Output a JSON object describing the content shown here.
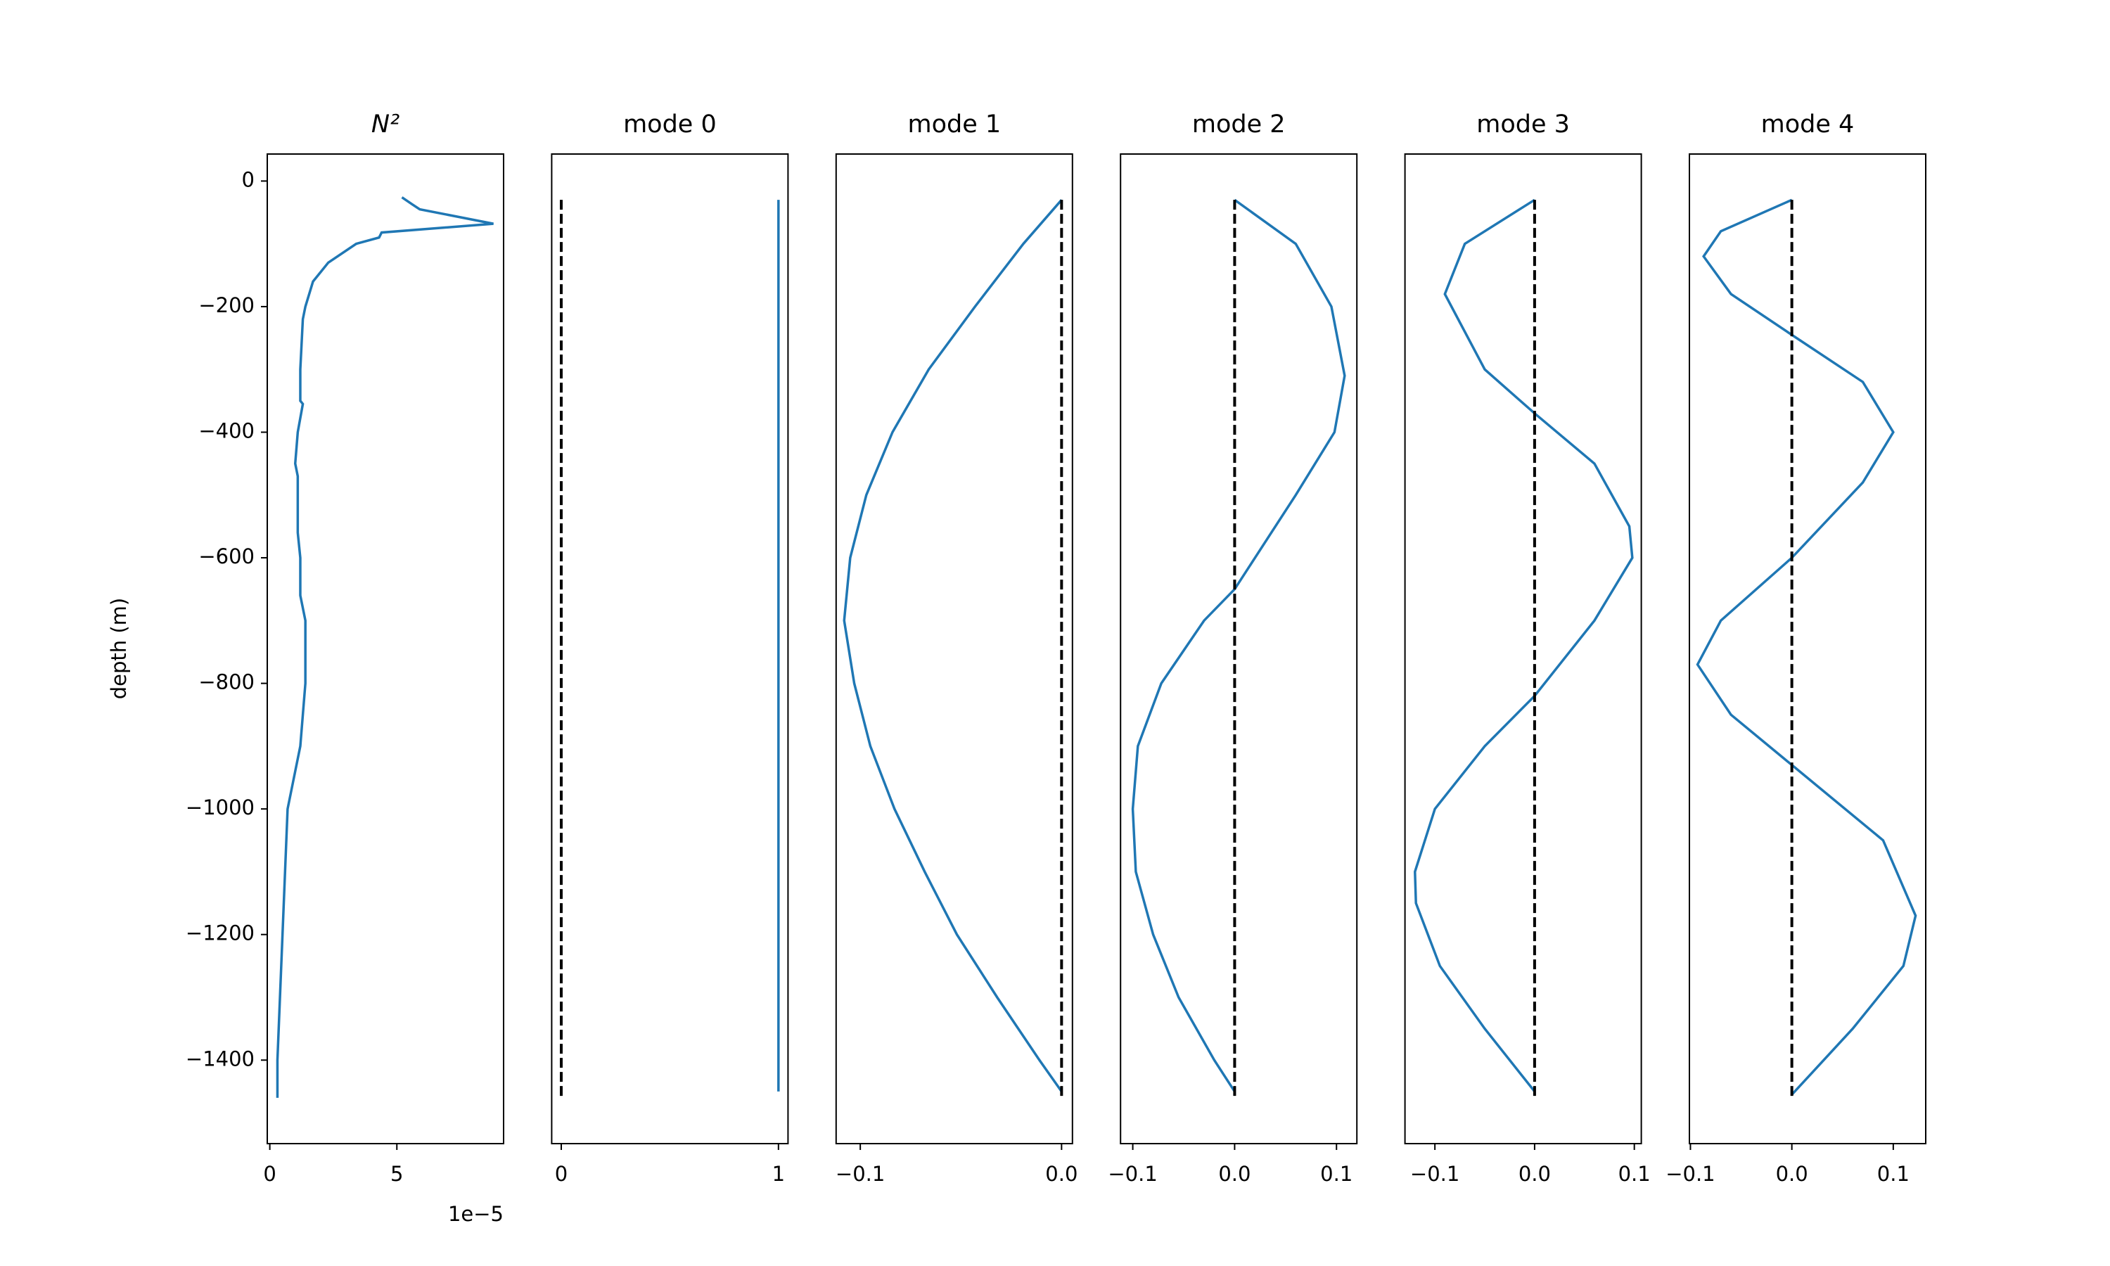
{
  "chart_data": [
    {
      "type": "line",
      "title": "N²",
      "ylabel": "depth (m)",
      "x_offset_label": "1e−5",
      "xlim": [
        -0.1,
        9.2
      ],
      "xticks": [
        0,
        5
      ],
      "ylim": [
        -1533,
        43
      ],
      "yticks": [
        0,
        {
          "value": -200,
          "label": "−200"
        },
        {
          "value": -400,
          "label": "−400"
        },
        {
          "value": -600,
          "label": "−600"
        },
        {
          "value": -800,
          "label": "−800"
        },
        {
          "value": -1000,
          "label": "−1000"
        },
        {
          "value": -1200,
          "label": "−1200"
        },
        {
          "value": -1400,
          "label": "−1400"
        }
      ],
      "series": [
        {
          "color": "#1f77b4",
          "values": [
            5.2,
            5.6,
            5.9,
            8.8,
            4.4,
            4.3,
            3.4,
            2.3,
            1.7,
            1.4,
            1.3,
            1.2,
            1.2,
            1.3,
            1.1,
            1.0,
            1.1,
            1.1,
            1.1,
            1.2,
            1.2,
            1.4,
            1.4,
            1.4,
            1.2,
            0.9,
            0.7,
            0.6,
            0.5,
            0.4,
            0.3,
            0.3
          ],
          "y": [
            -26,
            -37,
            -45,
            -68,
            -82,
            -90,
            -100,
            -130,
            -160,
            -200,
            -220,
            -300,
            -350,
            -355,
            -400,
            -450,
            -470,
            -500,
            -560,
            -600,
            -660,
            -700,
            -760,
            -800,
            -900,
            -960,
            -1000,
            -1100,
            -1200,
            -1300,
            -1400,
            -1460
          ]
        }
      ]
    },
    {
      "type": "line",
      "title": "mode 0",
      "xlim": [
        -0.044,
        1.044
      ],
      "xticks": [
        0,
        1
      ],
      "ylim": [
        -1533,
        43
      ],
      "series": [
        {
          "color": "#000000",
          "dashed": true,
          "values": [
            0,
            0
          ],
          "y": [
            -30,
            -1460
          ]
        },
        {
          "color": "#1f77b4",
          "values": [
            1,
            1
          ],
          "y": [
            -30,
            -1450
          ]
        }
      ]
    },
    {
      "type": "line",
      "title": "mode 1",
      "xlim": [
        -0.112,
        0.0054
      ],
      "xticks": [
        {
          "value": -0.1,
          "label": "−0.1"
        },
        {
          "value": 0,
          "label": "0.0"
        }
      ],
      "ylim": [
        -1533,
        43
      ],
      "series": [
        {
          "color": "#1f77b4",
          "values": [
            0,
            -0.019,
            -0.043,
            -0.066,
            -0.084,
            -0.097,
            -0.105,
            -0.108,
            -0.103,
            -0.095,
            -0.083,
            -0.068,
            -0.052,
            -0.032,
            -0.011,
            0
          ],
          "y": [
            -30,
            -100,
            -200,
            -300,
            -400,
            -500,
            -600,
            -700,
            -800,
            -900,
            -1000,
            -1100,
            -1200,
            -1300,
            -1400,
            -1450
          ]
        },
        {
          "color": "#000000",
          "dashed": true,
          "values": [
            0,
            0
          ],
          "y": [
            -30,
            -1460
          ]
        }
      ]
    },
    {
      "type": "line",
      "title": "mode 2",
      "xlim": [
        -0.112,
        0.12
      ],
      "xticks": [
        {
          "value": -0.1,
          "label": "−0.1"
        },
        {
          "value": 0,
          "label": "0.0"
        },
        0.1
      ],
      "ylim": [
        -1533,
        43
      ],
      "series": [
        {
          "color": "#1f77b4",
          "values": [
            0,
            0.06,
            0.095,
            0.108,
            0.098,
            0.06,
            0.02,
            0,
            -0.03,
            -0.072,
            -0.095,
            -0.1,
            -0.097,
            -0.08,
            -0.055,
            -0.02,
            0
          ],
          "y": [
            -30,
            -100,
            -200,
            -310,
            -400,
            -500,
            -600,
            -650,
            -700,
            -800,
            -900,
            -1000,
            -1100,
            -1200,
            -1300,
            -1400,
            -1450
          ]
        },
        {
          "color": "#000000",
          "dashed": true,
          "values": [
            0,
            0
          ],
          "y": [
            -30,
            -1460
          ]
        }
      ]
    },
    {
      "type": "line",
      "title": "mode 3",
      "xlim": [
        -0.13,
        0.107
      ],
      "xticks": [
        {
          "value": -0.1,
          "label": "−0.1"
        },
        {
          "value": 0,
          "label": "0.0"
        },
        0.1
      ],
      "ylim": [
        -1533,
        43
      ],
      "series": [
        {
          "color": "#1f77b4",
          "values": [
            0,
            -0.07,
            -0.09,
            -0.05,
            0,
            0.06,
            0.095,
            0.098,
            0.06,
            0,
            -0.05,
            -0.1,
            -0.12,
            -0.119,
            -0.095,
            -0.05,
            0
          ],
          "y": [
            -30,
            -100,
            -180,
            -300,
            -370,
            -450,
            -550,
            -600,
            -700,
            -820,
            -900,
            -1000,
            -1100,
            -1150,
            -1250,
            -1350,
            -1450
          ]
        },
        {
          "color": "#000000",
          "dashed": true,
          "values": [
            0,
            0
          ],
          "y": [
            -30,
            -1460
          ]
        }
      ]
    },
    {
      "type": "line",
      "title": "mode 4",
      "xlim": [
        -0.101,
        0.132
      ],
      "xticks": [
        {
          "value": -0.1,
          "label": "−0.1"
        },
        {
          "value": 0,
          "label": "0.0"
        },
        0.1
      ],
      "ylim": [
        -1533,
        43
      ],
      "series": [
        {
          "color": "#1f77b4",
          "values": [
            0,
            -0.07,
            -0.087,
            -0.06,
            0,
            0.07,
            0.1,
            0.07,
            0,
            -0.07,
            -0.093,
            -0.06,
            0,
            0.09,
            0.122,
            0.11,
            0.06,
            0
          ],
          "y": [
            -30,
            -80,
            -120,
            -180,
            -245,
            -320,
            -400,
            -480,
            -600,
            -700,
            -770,
            -850,
            -930,
            -1050,
            -1170,
            -1250,
            -1350,
            -1455
          ]
        },
        {
          "color": "#000000",
          "dashed": true,
          "values": [
            0,
            0
          ],
          "y": [
            -30,
            -1460
          ]
        }
      ]
    }
  ]
}
